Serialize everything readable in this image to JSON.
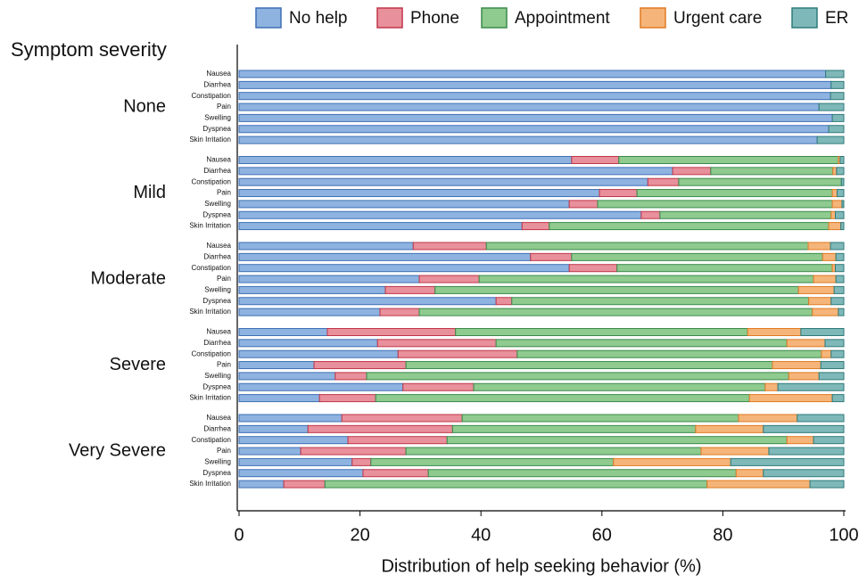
{
  "chart_data": {
    "type": "stacked-bar-horizontal",
    "y_title": "Symptom severity",
    "x_label": "Distribution of help seeking behavior (%)",
    "xlim": [
      0,
      100
    ],
    "xticks": [
      0,
      20,
      40,
      60,
      80,
      100
    ],
    "groups": [
      {
        "name": "None",
        "categories": [
          "Nausea",
          "Diarrhea",
          "Constipation",
          "Pain",
          "Swelling",
          "Dyspnea",
          "Skin Irritation"
        ]
      },
      {
        "name": "Mild",
        "categories": [
          "Nausea",
          "Diarrhea",
          "Constipation",
          "Pain",
          "Swelling",
          "Dyspnea",
          "Skin Irritation"
        ]
      },
      {
        "name": "Moderate",
        "categories": [
          "Nausea",
          "Diarrhea",
          "Constipation",
          "Pain",
          "Swelling",
          "Dyspnea",
          "Skin Irritation"
        ]
      },
      {
        "name": "Severe",
        "categories": [
          "Nausea",
          "Diarrhea",
          "Constipation",
          "Pain",
          "Swelling",
          "Dyspnea",
          "Skin Irritation"
        ]
      },
      {
        "name": "Very Severe",
        "categories": [
          "Nausea",
          "Diarrhea",
          "Constipation",
          "Pain",
          "Swelling",
          "Dyspnea",
          "Skin Irritation"
        ]
      }
    ],
    "series": [
      {
        "name": "No help",
        "color": "#8fb3e0",
        "stroke": "#3d6fb5",
        "values": [
          97.0,
          97.9,
          97.8,
          95.9,
          98.1,
          97.5,
          95.6,
          55.0,
          71.7,
          67.6,
          59.6,
          54.6,
          66.5,
          46.8,
          28.8,
          48.2,
          54.6,
          29.8,
          24.2,
          42.5,
          23.3,
          14.6,
          22.9,
          26.3,
          12.4,
          15.9,
          27.1,
          13.3,
          17.0,
          11.4,
          18.0,
          10.2,
          18.7,
          20.5,
          7.4
        ]
      },
      {
        "name": "Phone",
        "color": "#e8909b",
        "stroke": "#c0364a",
        "values": [
          0,
          0,
          0,
          0,
          0,
          0,
          0,
          7.8,
          6.3,
          5.1,
          6.2,
          4.7,
          3.1,
          4.5,
          12.1,
          6.8,
          7.9,
          9.9,
          8.2,
          2.6,
          6.5,
          21.2,
          19.6,
          19.7,
          15.2,
          5.2,
          11.7,
          9.3,
          19.9,
          23.9,
          16.4,
          17.4,
          3.1,
          10.8,
          6.8
        ]
      },
      {
        "name": "Appointment",
        "color": "#8fca8f",
        "stroke": "#3a8a4a",
        "values": [
          0,
          0,
          0,
          0,
          0,
          0,
          0,
          36.3,
          20.2,
          26.9,
          32.3,
          38.8,
          28.3,
          46.2,
          53.2,
          41.5,
          35.6,
          55.3,
          60.1,
          49.1,
          65.0,
          48.3,
          48.1,
          50.3,
          60.6,
          69.8,
          48.2,
          61.8,
          45.7,
          40.2,
          56.2,
          48.8,
          40.1,
          50.9,
          63.2
        ]
      },
      {
        "name": "Urgent care",
        "color": "#f5b57a",
        "stroke": "#e07a22",
        "values": [
          0,
          0,
          0,
          0,
          0,
          0,
          0,
          0.3,
          0.6,
          0,
          0.8,
          1.6,
          0.7,
          2.0,
          3.7,
          2.2,
          0.5,
          3.7,
          5.9,
          3.7,
          4.3,
          8.8,
          6.3,
          1.6,
          8.0,
          5.0,
          2.1,
          13.7,
          9.7,
          11.2,
          4.4,
          11.2,
          19.4,
          4.5,
          17.0
        ]
      },
      {
        "name": "ER",
        "color": "#7fb8b8",
        "stroke": "#2e7a7a",
        "values": [
          3.0,
          2.1,
          2.2,
          4.1,
          1.9,
          2.5,
          4.4,
          0.6,
          1.2,
          0.4,
          1.1,
          0.3,
          1.4,
          0.5,
          2.2,
          1.3,
          1.4,
          1.3,
          1.6,
          2.1,
          0.9,
          7.1,
          3.1,
          2.1,
          3.8,
          4.1,
          10.9,
          1.9,
          7.7,
          13.3,
          5.0,
          12.4,
          18.7,
          13.3,
          5.6
        ]
      }
    ]
  }
}
